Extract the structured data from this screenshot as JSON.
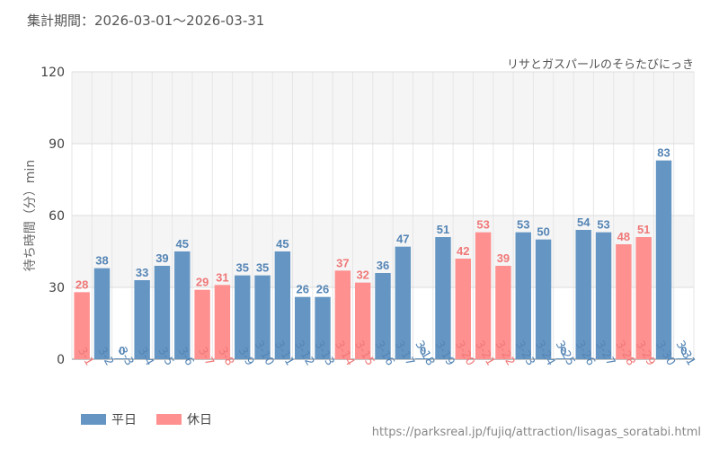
{
  "header": {
    "period": "集計期間：2026-03-01～2026-03-31",
    "attraction": "リサとガスパールのそらたびにっき"
  },
  "footer": {
    "source": "https://parksreal.jp/fujiq/attraction/lisagas_soratabi.html"
  },
  "colors": {
    "weekday": "#6596c3",
    "holiday": "#ff9090",
    "weekday_text": "#5585b5",
    "holiday_text": "#f07878"
  },
  "chart_data": {
    "type": "bar",
    "ylabel": "待ち時間（分）min",
    "ylim": [
      0,
      120
    ],
    "yticks": [
      0,
      30,
      60,
      90,
      120
    ],
    "categories": [
      "3-1",
      "3-2",
      "3-3",
      "3-4",
      "3-5",
      "3-6",
      "3-7",
      "3-8",
      "3-9",
      "3-10",
      "3-11",
      "3-12",
      "3-13",
      "3-14",
      "3-15",
      "3-16",
      "3-17",
      "3-18",
      "3-19",
      "3-20",
      "3-21",
      "3-22",
      "3-23",
      "3-24",
      "3-25",
      "3-26",
      "3-27",
      "3-28",
      "3-29",
      "3-30",
      "3-31"
    ],
    "values": [
      28,
      38,
      0,
      33,
      39,
      45,
      29,
      31,
      35,
      35,
      45,
      26,
      26,
      37,
      32,
      36,
      47,
      0,
      51,
      42,
      53,
      39,
      53,
      50,
      0,
      54,
      53,
      48,
      51,
      83,
      0
    ],
    "day_type": [
      "holiday",
      "weekday",
      "weekday",
      "weekday",
      "weekday",
      "weekday",
      "holiday",
      "holiday",
      "weekday",
      "weekday",
      "weekday",
      "weekday",
      "weekday",
      "holiday",
      "holiday",
      "weekday",
      "weekday",
      "weekday",
      "weekday",
      "holiday",
      "holiday",
      "holiday",
      "weekday",
      "weekday",
      "weekday",
      "weekday",
      "weekday",
      "holiday",
      "holiday",
      "weekday",
      "weekday"
    ],
    "legend": [
      {
        "key": "weekday",
        "label": "平日"
      },
      {
        "key": "holiday",
        "label": "休日"
      }
    ],
    "grid": true,
    "legend_position": "bottom-left"
  }
}
